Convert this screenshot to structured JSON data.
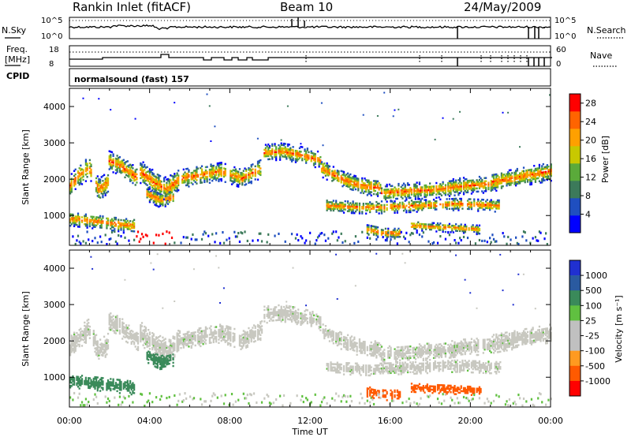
{
  "header": {
    "station": "Rankin Inlet (fitACF)",
    "beam": "Beam 10",
    "date": "24/May/2009"
  },
  "strip": {
    "nsky_label": "N.Sky",
    "nsky_ticks": [
      "10^5",
      "10^0"
    ],
    "nsearch_label": "N.Search",
    "nsearch_ticks": [
      "10^5",
      "10^0"
    ],
    "freq_label_line1": "Freq.",
    "freq_label_line2": "[MHz]",
    "freq_ticks": [
      "18",
      "8"
    ],
    "nave_label": "Nave",
    "nave_ticks": [
      "60",
      "0"
    ],
    "cpid_label": "CPID",
    "cpid_value": "normalsound (fast) 157"
  },
  "colors": {
    "power_scale": [
      "#0000ff",
      "#1f4fc0",
      "#3c7a5a",
      "#5aaa3a",
      "#c8c800",
      "#ffa000",
      "#ff6400",
      "#ff0000"
    ],
    "velocity_scale": [
      "#2030d0",
      "#2a5aa0",
      "#3a8a5a",
      "#60c040",
      "#c0c0c0",
      "#c0c0c0",
      "#ff9a20",
      "#ff5a00",
      "#ff0000"
    ],
    "ground_scatter": "#c8c8c0"
  },
  "chart_data": [
    {
      "type": "heatmap",
      "name": "power-panel",
      "ylabel": "Slant Range [km]",
      "xlabel": "",
      "x_ticks": [
        "00:00",
        "04:00",
        "08:00",
        "12:00",
        "16:00",
        "20:00",
        "00:00"
      ],
      "x_range_hours": [
        0,
        24
      ],
      "y_ticks": [
        1000,
        2000,
        3000,
        4000
      ],
      "y_range_km": [
        180,
        4500
      ],
      "colorbar_label": "Power [dB]",
      "colorbar_ticks": [
        4,
        8,
        12,
        16,
        20,
        24,
        28
      ],
      "colorbar_range": [
        0,
        30
      ]
    },
    {
      "type": "heatmap",
      "name": "velocity-panel",
      "ylabel": "Slant Range [km]",
      "xlabel": "Time UT",
      "x_ticks": [
        "00:00",
        "04:00",
        "08:00",
        "12:00",
        "16:00",
        "20:00",
        "00:00"
      ],
      "x_range_hours": [
        0,
        24
      ],
      "y_ticks": [
        1000,
        2000,
        3000,
        4000
      ],
      "y_range_km": [
        180,
        4500
      ],
      "colorbar_label": "Velocity [m s⁻¹]",
      "colorbar_ticks": [
        "1000",
        "500",
        "100",
        "25",
        "-25",
        "-100",
        "-500",
        "-1000"
      ]
    }
  ]
}
